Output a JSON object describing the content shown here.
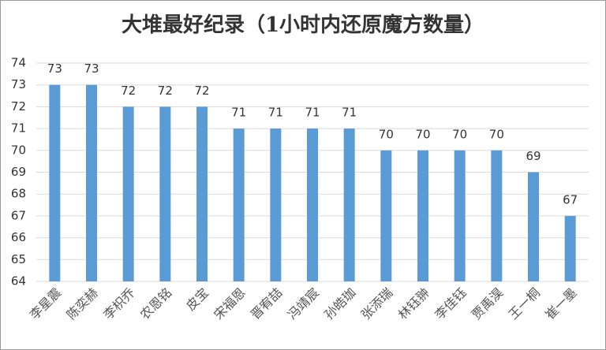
{
  "chart_data": {
    "type": "bar",
    "title": "大堆最好纪录（1小时内还原魔方数量）",
    "categories": [
      "李星震",
      "陈奕赫",
      "李枳乔",
      "农恩铭",
      "皮宝",
      "宋福恩",
      "晋宥喆",
      "冯靖宸",
      "孙皓珈",
      "张添瑞",
      "林钰翀",
      "李佳钰",
      "贾禹淏",
      "王一桐",
      "崔一墨"
    ],
    "values": [
      73,
      73,
      72,
      72,
      72,
      71,
      71,
      71,
      71,
      70,
      70,
      70,
      70,
      69,
      67
    ],
    "color": "#5b9bd5",
    "ylim": [
      64,
      74
    ],
    "yticks": [
      64,
      65,
      66,
      67,
      68,
      69,
      70,
      71,
      72,
      73,
      74
    ],
    "grid": true
  }
}
